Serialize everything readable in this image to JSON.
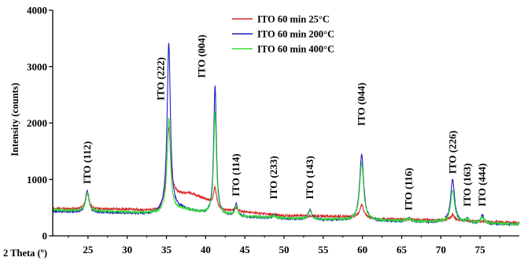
{
  "chart_data": {
    "type": "line",
    "title": "",
    "xlabel": "2 Theta (º)",
    "ylabel": "Intensity (counts)",
    "xlim": [
      20.5,
      80
    ],
    "ylim": [
      0,
      4000
    ],
    "x_ticks": [
      25,
      30,
      35,
      40,
      45,
      50,
      55,
      60,
      65,
      70,
      75
    ],
    "y_ticks": [
      0,
      1000,
      2000,
      3000,
      4000
    ],
    "legend_position": "top-right",
    "grid": false,
    "series": [
      {
        "name": "ITO 60 min 25°C",
        "color": "#d62728",
        "baseline": [
          [
            20.5,
            480
          ],
          [
            30,
            470
          ],
          [
            34,
            440
          ],
          [
            36,
            720
          ],
          [
            38,
            750
          ],
          [
            40,
            650
          ],
          [
            42,
            460
          ],
          [
            50,
            360
          ],
          [
            58,
            340
          ],
          [
            62,
            300
          ],
          [
            70,
            280
          ],
          [
            76,
            250
          ],
          [
            80,
            230
          ]
        ],
        "peaks": [
          [
            24.9,
            320,
            0.25
          ],
          [
            35.3,
            1300,
            0.28
          ],
          [
            41.2,
            320,
            0.22
          ],
          [
            43.9,
            60,
            0.2
          ],
          [
            59.9,
            230,
            0.3
          ],
          [
            71.5,
            100,
            0.3
          ]
        ]
      },
      {
        "name": "ITO 60 min 200°C",
        "color": "#1f1fbf",
        "baseline": [
          [
            20.5,
            430
          ],
          [
            30,
            400
          ],
          [
            34,
            380
          ],
          [
            37,
            470
          ],
          [
            40,
            380
          ],
          [
            45,
            330
          ],
          [
            55,
            280
          ],
          [
            62,
            260
          ],
          [
            70,
            240
          ],
          [
            76,
            210
          ],
          [
            80,
            200
          ]
        ],
        "peaks": [
          [
            24.9,
            380,
            0.25
          ],
          [
            35.3,
            3000,
            0.25
          ],
          [
            41.2,
            2300,
            0.2
          ],
          [
            43.9,
            210,
            0.22
          ],
          [
            48.7,
            60,
            0.2
          ],
          [
            53.3,
            180,
            0.25
          ],
          [
            59.9,
            1180,
            0.3
          ],
          [
            65.9,
            70,
            0.25
          ],
          [
            71.5,
            760,
            0.3
          ],
          [
            73.4,
            70,
            0.25
          ],
          [
            75.3,
            150,
            0.25
          ]
        ]
      },
      {
        "name": "ITO 60 min 400°C",
        "color": "#33dd33",
        "baseline": [
          [
            20.5,
            460
          ],
          [
            30,
            420
          ],
          [
            34,
            400
          ],
          [
            37,
            470
          ],
          [
            40,
            400
          ],
          [
            45,
            340
          ],
          [
            55,
            290
          ],
          [
            62,
            270
          ],
          [
            70,
            250
          ],
          [
            76,
            220
          ],
          [
            80,
            210
          ]
        ],
        "peaks": [
          [
            24.9,
            320,
            0.25
          ],
          [
            35.3,
            1660,
            0.25
          ],
          [
            41.2,
            1820,
            0.2
          ],
          [
            43.9,
            170,
            0.22
          ],
          [
            48.7,
            40,
            0.2
          ],
          [
            53.3,
            150,
            0.25
          ],
          [
            59.9,
            1000,
            0.3
          ],
          [
            65.9,
            50,
            0.25
          ],
          [
            71.5,
            560,
            0.3
          ],
          [
            73.4,
            60,
            0.25
          ],
          [
            75.3,
            100,
            0.25
          ]
        ]
      }
    ],
    "annotations": [
      {
        "text": "ITO (112)",
        "x": 24.9,
        "y": 920
      },
      {
        "text": "ITO (222)",
        "x": 34.3,
        "y": 2400
      },
      {
        "text": "ITO (004)",
        "x": 39.5,
        "y": 2800
      },
      {
        "text": "ITO (114)",
        "x": 43.9,
        "y": 700
      },
      {
        "text": "ITO (233)",
        "x": 48.7,
        "y": 650
      },
      {
        "text": "ITO (143)",
        "x": 53.3,
        "y": 650
      },
      {
        "text": "ITO (044)",
        "x": 59.9,
        "y": 1950
      },
      {
        "text": "ITO (116)",
        "x": 65.9,
        "y": 450
      },
      {
        "text": "ITO (226)",
        "x": 71.5,
        "y": 1100
      },
      {
        "text": "ITO (163)",
        "x": 73.4,
        "y": 520
      },
      {
        "text": "ITO (444)",
        "x": 75.3,
        "y": 520
      }
    ]
  }
}
